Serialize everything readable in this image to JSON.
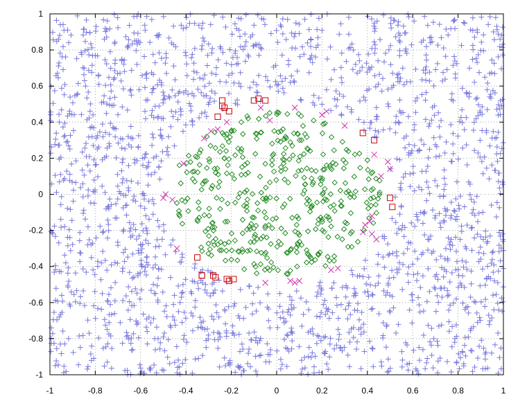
{
  "chart_data": {
    "type": "scatter",
    "title": "",
    "xlabel": "",
    "ylabel": "",
    "xlim": [
      -1,
      1
    ],
    "ylim": [
      -1,
      1
    ],
    "grid": true,
    "grid_style": "dotted",
    "x_ticks": [
      "-1",
      "-0.8",
      "-0.6",
      "-0.4",
      "-0.2",
      "0",
      "0.2",
      "0.4",
      "0.6",
      "0.8",
      "1"
    ],
    "y_ticks": [
      "1",
      "0.8",
      "0.6",
      "0.4",
      "0.2",
      "0",
      "-0.2",
      "-0.4",
      "-0.6",
      "-0.8",
      "-1"
    ],
    "legend": "none",
    "series": [
      {
        "marker": "plus",
        "color": "#7777dd",
        "region": "outside",
        "count_approx": 2000,
        "inner_radius": 0.52,
        "x": [],
        "y": []
      },
      {
        "marker": "diamond",
        "color": "#228b22",
        "region": "inside",
        "count_approx": 420,
        "outer_radius": 0.46,
        "x": [],
        "y": []
      },
      {
        "marker": "x",
        "color": "#cc33aa",
        "region": "boundary",
        "x": [
          -0.46,
          -0.5,
          -0.49,
          -0.44,
          -0.41,
          -0.32,
          -0.29,
          -0.22,
          -0.26,
          -0.07,
          -0.03,
          0.08,
          0.2,
          0.22,
          0.3,
          0.43,
          0.49,
          0.5,
          0.46,
          0.42,
          0.39,
          0.42,
          0.44,
          0.38,
          0.41,
          0.24,
          0.27,
          0.1,
          0.08,
          0.06,
          -0.05
        ],
        "y": [
          -0.03,
          -0.02,
          0.0,
          -0.3,
          0.17,
          0.31,
          0.35,
          0.4,
          0.36,
          0.48,
          0.41,
          0.48,
          0.44,
          0.46,
          0.38,
          0.22,
          0.18,
          0.14,
          0.1,
          -0.12,
          -0.17,
          -0.22,
          -0.25,
          -0.21,
          -0.15,
          -0.42,
          -0.41,
          -0.48,
          -0.49,
          -0.48,
          -0.49
        ]
      },
      {
        "marker": "square",
        "color": "#cc0000",
        "region": "boundary",
        "x": [
          -0.24,
          -0.24,
          -0.23,
          -0.21,
          -0.26,
          -0.1,
          -0.08,
          -0.05,
          0.38,
          0.43,
          0.5,
          0.51,
          -0.33,
          -0.33,
          -0.28,
          -0.27,
          -0.22,
          -0.21,
          -0.19,
          -0.35
        ],
        "y": [
          0.52,
          0.49,
          0.48,
          0.46,
          0.43,
          0.52,
          0.53,
          0.52,
          0.34,
          0.3,
          -0.02,
          -0.07,
          -0.45,
          -0.45,
          -0.45,
          -0.46,
          -0.47,
          -0.48,
          -0.47,
          -0.35
        ]
      }
    ]
  }
}
